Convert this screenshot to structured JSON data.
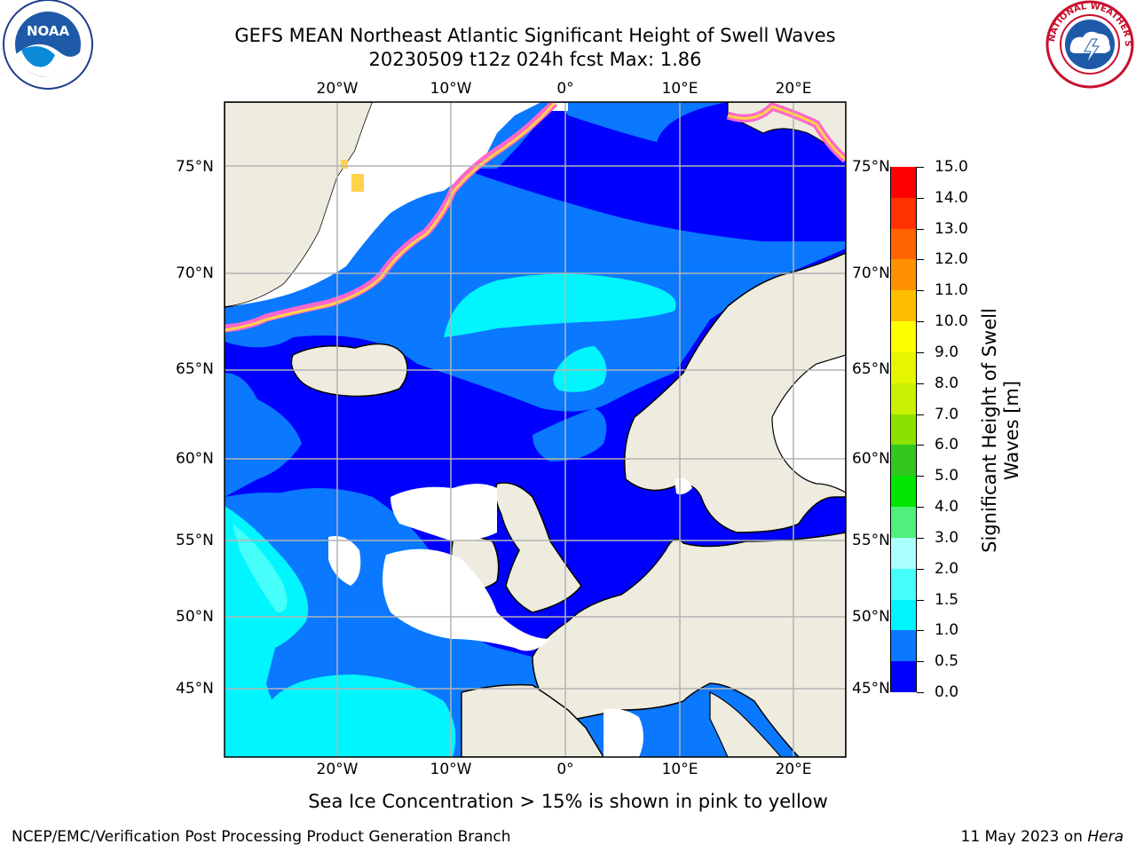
{
  "title": {
    "line1": "GEFS MEAN Northeast Atlantic Significant Height of Swell Waves",
    "line2": "20230509 t12z 024h fcst   Max: 1.86"
  },
  "axes": {
    "lon_labels": [
      "20°W",
      "10°W",
      "0°",
      "10°E",
      "20°E"
    ],
    "lat_labels": [
      "75°N",
      "70°N",
      "65°N",
      "60°N",
      "55°N",
      "50°N",
      "45°N"
    ]
  },
  "colorbar": {
    "title_line1": "Significant Height of Swell",
    "title_line2": "Waves [m]",
    "labels": [
      "0.0",
      "0.5",
      "1.0",
      "1.5",
      "2.0",
      "3.0",
      "4.0",
      "5.0",
      "6.0",
      "7.0",
      "8.0",
      "9.0",
      "10.0",
      "11.0",
      "12.0",
      "13.0",
      "14.0",
      "15.0"
    ],
    "colors": [
      "#0000ff",
      "#0a78ff",
      "#00f5ff",
      "#46fffa",
      "#aaffff",
      "#50f07d",
      "#00e600",
      "#32c81e",
      "#8ce100",
      "#c8f000",
      "#e6f500",
      "#ffff00",
      "#ffbe00",
      "#ff9100",
      "#ff6400",
      "#ff3200",
      "#ff0000"
    ]
  },
  "caption": "Sea Ice Concentration > 15% is shown in pink to yellow",
  "footer": {
    "left": "NCEP/EMC/Verification Post Processing Product Generation Branch",
    "right_prefix": "11 May 2023 on ",
    "right_host": "Hera"
  },
  "logos": {
    "noaa": "NOAA",
    "nws": "NATIONAL WEATHER SERVICE"
  },
  "colors": {
    "land": "#eeecdf",
    "deep_blue": "#0000ff",
    "mid_blue": "#0a78ff",
    "cyan": "#00f5ff",
    "light_cyan": "#46fffa",
    "ice_pink": "#ff66cc",
    "ice_yellow": "#ffd24a"
  }
}
